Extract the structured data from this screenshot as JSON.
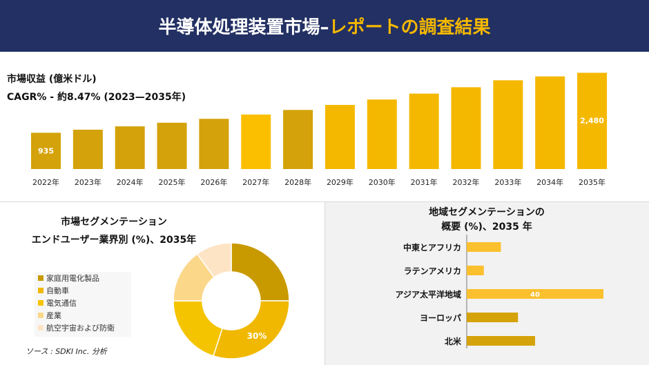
{
  "header": {
    "title_main": "半導体処理装置市場–",
    "title_accent": "レポートの調査結果"
  },
  "market": {
    "revenue_label": "市場収益 (億米ドル)",
    "cagr_label": "CAGR% - 約8.47% (2023—2035年)"
  },
  "segment": {
    "title_line1": "市場セグメンテーション",
    "title_line2": "エンドユーザー業界別 (%)、2035年"
  },
  "regional": {
    "title_line1": "地域セグメンテーションの",
    "title_line2": "概要 (%)、2035 年"
  },
  "source": "ソース : SDKI Inc. 分析",
  "colors": {
    "header_bg": "#233063",
    "accent": "#f5b800",
    "gold": "#d4a20a"
  },
  "chart_data": [
    {
      "type": "bar",
      "categories": [
        "2022年",
        "2023年",
        "2024年",
        "2025年",
        "2026年",
        "2027年",
        "2028年",
        "2029年",
        "2030年",
        "2031年",
        "2032年",
        "2033年",
        "2034年",
        "2035年"
      ],
      "values": [
        935,
        1014,
        1100,
        1193,
        1294,
        1404,
        1523,
        1652,
        1792,
        1944,
        2108,
        2287,
        2387,
        2480
      ],
      "data_labels": {
        "0": "935",
        "13": "2,480"
      },
      "colors": [
        "#d4a20a",
        "#d4a20a",
        "#d4a20a",
        "#d4a20a",
        "#d4a20a",
        "#fbbf00",
        "#d4a20a",
        "#f5b800",
        "#f5b800",
        "#f5b800",
        "#f5b800",
        "#f5b800",
        "#f5b800",
        "#f5b800"
      ]
    },
    {
      "type": "pie",
      "donut": true,
      "labels": [
        "家庭用電化製品",
        "自動車",
        "電気通信",
        "産業",
        "航空宇宙および防衛"
      ],
      "values": [
        25,
        30,
        20,
        15,
        10
      ],
      "colors": [
        "#c99a00",
        "#f0b800",
        "#f5c400",
        "#fbd78a",
        "#fde4c4"
      ],
      "data_labels": {
        "1": "30%"
      }
    },
    {
      "type": "bar",
      "orientation": "horizontal",
      "categories": [
        "中東とアフリカ",
        "ラテンアメリカ",
        "アジア太平洋地域",
        "ヨーロッパ",
        "北米"
      ],
      "values": [
        10,
        5,
        40,
        15,
        20
      ],
      "colors": [
        "#fbc02d",
        "#fbc02d",
        "#fbc02d",
        "#d4a20a",
        "#d4a20a"
      ],
      "data_labels": {
        "2": "40"
      }
    }
  ]
}
